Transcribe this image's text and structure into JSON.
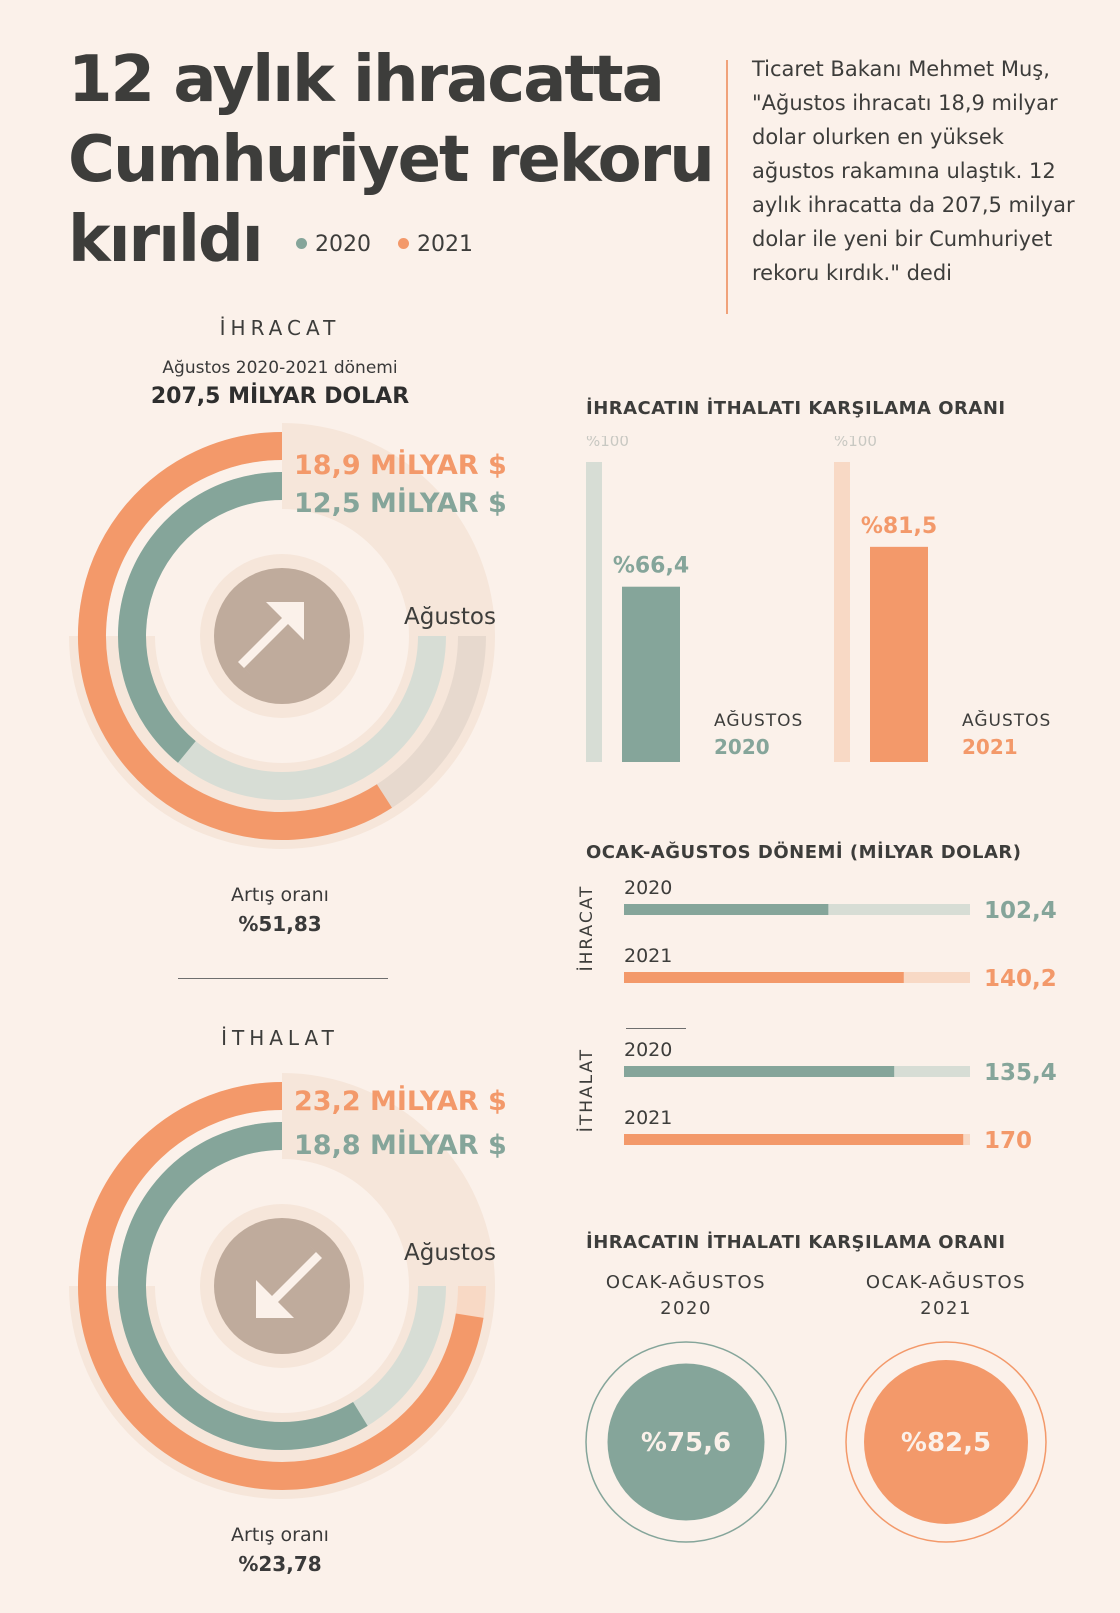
{
  "title": [
    "12 aylık ihracatta",
    "Cumhuriyet rekoru",
    "kırıldı"
  ],
  "legend": [
    {
      "label": "2020",
      "color": "#85a59a"
    },
    {
      "label": "2021",
      "color": "#f3996a"
    }
  ],
  "quote": "Ticaret Bakanı Mehmet Muş, \"Ağustos ihracatı 18,9 milyar dolar olurken en yüksek ağustos rakamına ulaştık. 12 aylık ihracatta da 207,5 milyar dolar ile yeni bir Cumhuriyet rekoru kırdık.\" dedi",
  "colors": {
    "teal": "#85a59a",
    "orange": "#f3996a",
    "light_teal": "#d7ddd5",
    "light_orange": "#f8d9c5",
    "arrow_circle": "#bfab9c",
    "halo": "#f6e6da"
  },
  "export_section": {
    "heading": "İHRACAT",
    "subtitle": "Ağustos 2020-2021 dönemi",
    "total": "207,5 MİLYAR DOLAR",
    "value_2021": "18,9 MİLYAR $",
    "value_2020": "12,5 MİLYAR $",
    "month_label": "Ağustos",
    "increase_label": "Artış oranı",
    "increase_value": "%51,83",
    "icon": "arrow-up-right-icon"
  },
  "import_section": {
    "heading": "İTHALAT",
    "value_2021": "23,2 MİLYAR $",
    "value_2020": "18,8 MİLYAR $",
    "month_label": "Ağustos",
    "increase_label": "Artış oranı",
    "increase_value": "%23,78",
    "icon": "arrow-down-left-icon"
  },
  "chart_data": [
    {
      "type": "radial-bar",
      "title": "İHRACAT",
      "categories": [
        "Ağustos"
      ],
      "series": [
        {
          "name": "2020",
          "values": [
            12.5
          ]
        },
        {
          "name": "2021",
          "values": [
            18.9
          ]
        }
      ],
      "unit": "MİLYAR $"
    },
    {
      "type": "radial-bar",
      "title": "İTHALAT",
      "categories": [
        "Ağustos"
      ],
      "series": [
        {
          "name": "2020",
          "values": [
            18.8
          ]
        },
        {
          "name": "2021",
          "values": [
            23.2
          ]
        }
      ],
      "unit": "MİLYAR $"
    },
    {
      "type": "bar",
      "title": "İHRACATIN İTHALATI KARŞILAMA ORANI",
      "reference_label": "%100",
      "ylim": [
        0,
        100
      ],
      "bars": [
        {
          "period_label": "AĞUSTOS",
          "year": "2020",
          "value": 66.4,
          "label": "%66,4",
          "color": "#85a59a",
          "track_color": "#d7ddd5"
        },
        {
          "period_label": "AĞUSTOS",
          "year": "2021",
          "value": 81.5,
          "label": "%81,5",
          "color": "#f3996a",
          "track_color": "#f8d9c5"
        }
      ]
    },
    {
      "type": "bar",
      "orientation": "horizontal",
      "title": "OCAK-AĞUSTOS DÖNEMİ (MİLYAR DOLAR)",
      "xlim": [
        0,
        170
      ],
      "groups": [
        {
          "name": "İHRACAT",
          "rows": [
            {
              "year": "2020",
              "value": 102.4,
              "label": "102,4",
              "color": "#85a59a",
              "track_color": "#d7ddd5"
            },
            {
              "year": "2021",
              "value": 140.2,
              "label": "140,2",
              "color": "#f3996a",
              "track_color": "#f8d9c5"
            }
          ]
        },
        {
          "name": "İTHALAT",
          "rows": [
            {
              "year": "2020",
              "value": 135.4,
              "label": "135,4",
              "color": "#85a59a",
              "track_color": "#d7ddd5"
            },
            {
              "year": "2021",
              "value": 170,
              "label": "170",
              "color": "#f3996a",
              "track_color": "#f8d9c5"
            }
          ]
        }
      ]
    },
    {
      "type": "table",
      "title": "İHRACATIN İTHALATI KARŞILAMA ORANI",
      "items": [
        {
          "period": "OCAK-AĞUSTOS",
          "year": "2020",
          "value": 75.6,
          "label": "%75,6",
          "color": "#85a59a"
        },
        {
          "period": "OCAK-AĞUSTOS",
          "year": "2021",
          "value": 82.5,
          "label": "%82,5",
          "color": "#f3996a"
        }
      ]
    }
  ]
}
